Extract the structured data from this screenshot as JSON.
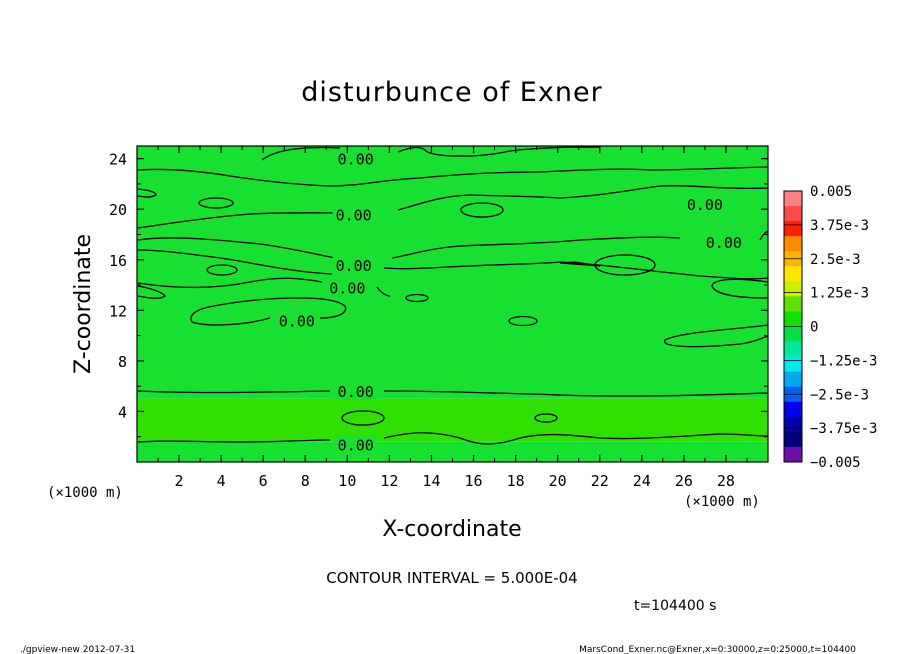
{
  "chart_data": {
    "type": "contour",
    "title": "disturbunce of Exner",
    "xlabel": "X-coordinate",
    "ylabel": "Z-coordinate",
    "x_unit_label": "(×1000 m)",
    "y_unit_label": "(×1000 m)",
    "xlim": [
      0,
      30
    ],
    "ylim": [
      0,
      25
    ],
    "x_ticks": [
      2,
      4,
      6,
      8,
      10,
      12,
      14,
      16,
      18,
      20,
      22,
      24,
      26,
      28
    ],
    "x_tick_labels": [
      "2",
      "4",
      "6",
      "8",
      "10",
      "12",
      "14",
      "16",
      "18",
      "20",
      "22",
      "24",
      "26",
      "28"
    ],
    "y_ticks": [
      4,
      8,
      12,
      16,
      20,
      24
    ],
    "y_tick_labels": [
      "4",
      "8",
      "12",
      "16",
      "20",
      "24"
    ],
    "contour_interval_text": "CONTOUR INTERVAL = 5.000E-04",
    "time_text": "t=104400 s",
    "contour_labels": [
      {
        "text": "0.00",
        "x": 10.4,
        "z": 24.0
      },
      {
        "text": "0.00",
        "x": 10.3,
        "z": 19.6
      },
      {
        "text": "0.00",
        "x": 27.0,
        "z": 20.4
      },
      {
        "text": "0.00",
        "x": 27.9,
        "z": 17.4
      },
      {
        "text": "0.00",
        "x": 10.3,
        "z": 15.6
      },
      {
        "text": "0.00",
        "x": 10.0,
        "z": 13.8
      },
      {
        "text": "0.00",
        "x": 7.6,
        "z": 11.2
      },
      {
        "text": "0.00",
        "x": 10.4,
        "z": 5.6
      },
      {
        "text": "0.00",
        "x": 10.4,
        "z": 1.4
      }
    ],
    "colorbar": {
      "labels": [
        "0.005",
        "3.75e-3",
        "2.5e-3",
        "1.25e-3",
        "0",
        "−1.25e-3",
        "−2.5e-3",
        "−3.75e-3",
        "−0.005"
      ],
      "values": [
        0.005,
        0.00375,
        0.0025,
        0.00125,
        0,
        -0.00125,
        -0.0025,
        -0.00375,
        -0.005
      ],
      "colors": [
        "#ff8080",
        "#ff4a4a",
        "#ff2000",
        "#ff8c00",
        "#ffb400",
        "#ffe600",
        "#c8f000",
        "#60e000",
        "#10e000",
        "#00e040",
        "#00e8a0",
        "#00e8e8",
        "#00a8f0",
        "#0060f0",
        "#0000e8",
        "#0000b0",
        "#00007a",
        "#6a10a8"
      ]
    },
    "bands": [
      {
        "z": [
          0.0,
          1.6
        ],
        "color": "#18e030"
      },
      {
        "z": [
          1.6,
          5.0
        ],
        "color": "#30e000"
      },
      {
        "z": [
          5.0,
          25.0
        ],
        "color": "#18e030"
      }
    ]
  },
  "footer": {
    "left": "./gpview-new 2012-07-31",
    "right": "MarsCond_Exner.nc@Exner,x=0:30000,z=0:25000,t=104400"
  }
}
